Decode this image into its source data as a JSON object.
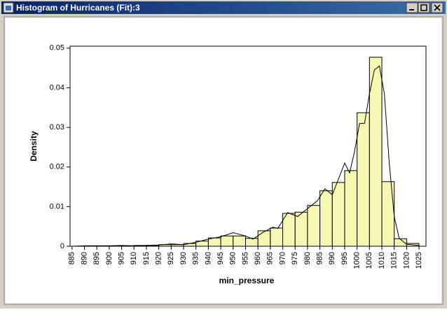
{
  "window": {
    "title": "Histogram of Hurricanes (Fit):3"
  },
  "chart_data": {
    "type": "histogram",
    "x_label": "min_pressure",
    "y_label": "Density",
    "bins": [
      885,
      890,
      895,
      900,
      905,
      910,
      915,
      920,
      925,
      930,
      935,
      940,
      945,
      950,
      955,
      960,
      965,
      970,
      975,
      980,
      985,
      990,
      995,
      1000,
      1005,
      1010,
      1015,
      1020,
      1025
    ],
    "values": [
      0,
      0.0001,
      0.0001,
      0.0001,
      0.0001,
      0.0002,
      0.0002,
      0.0004,
      0.0004,
      0.0007,
      0.0013,
      0.0021,
      0.0026,
      0.0026,
      0.002,
      0.0039,
      0.0046,
      0.0083,
      0.0086,
      0.0103,
      0.014,
      0.0161,
      0.0191,
      0.0337,
      0.0477,
      0.0163,
      0.0019,
      0.0007
    ],
    "color": "#f7f7b4",
    "density_curve": {
      "color": "#000000",
      "x": [
        885,
        890,
        900,
        905,
        910,
        920,
        925,
        930,
        935,
        940,
        945,
        950,
        955,
        958,
        962,
        966,
        968,
        972,
        976,
        980,
        984,
        987,
        990,
        993,
        995,
        997,
        999,
        1001,
        1003,
        1005,
        1007,
        1009,
        1011,
        1013,
        1015,
        1017,
        1020,
        1025
      ],
      "values": [
        0,
        0.0001,
        0.0001,
        0.0002,
        0.0001,
        0.0003,
        0.0006,
        0.0004,
        0.001,
        0.0018,
        0.0024,
        0.0034,
        0.0026,
        0.0018,
        0.0035,
        0.0048,
        0.0045,
        0.0085,
        0.0075,
        0.0095,
        0.0115,
        0.0145,
        0.013,
        0.0178,
        0.021,
        0.0185,
        0.024,
        0.031,
        0.031,
        0.0385,
        0.0445,
        0.0455,
        0.0385,
        0.021,
        0.0075,
        0.002,
        0.0005,
        0.0002
      ]
    },
    "xlim": [
      884.2,
      1027.8
    ],
    "xticks": [
      885,
      890,
      895,
      900,
      905,
      910,
      915,
      920,
      925,
      930,
      935,
      940,
      945,
      950,
      955,
      960,
      965,
      970,
      975,
      980,
      985,
      990,
      995,
      1000,
      1005,
      1010,
      1015,
      1020,
      1025
    ],
    "ylim": [
      0,
      0.0505
    ],
    "yticks": [
      0,
      0.01,
      0.02,
      0.03,
      0.04,
      0.05
    ]
  }
}
